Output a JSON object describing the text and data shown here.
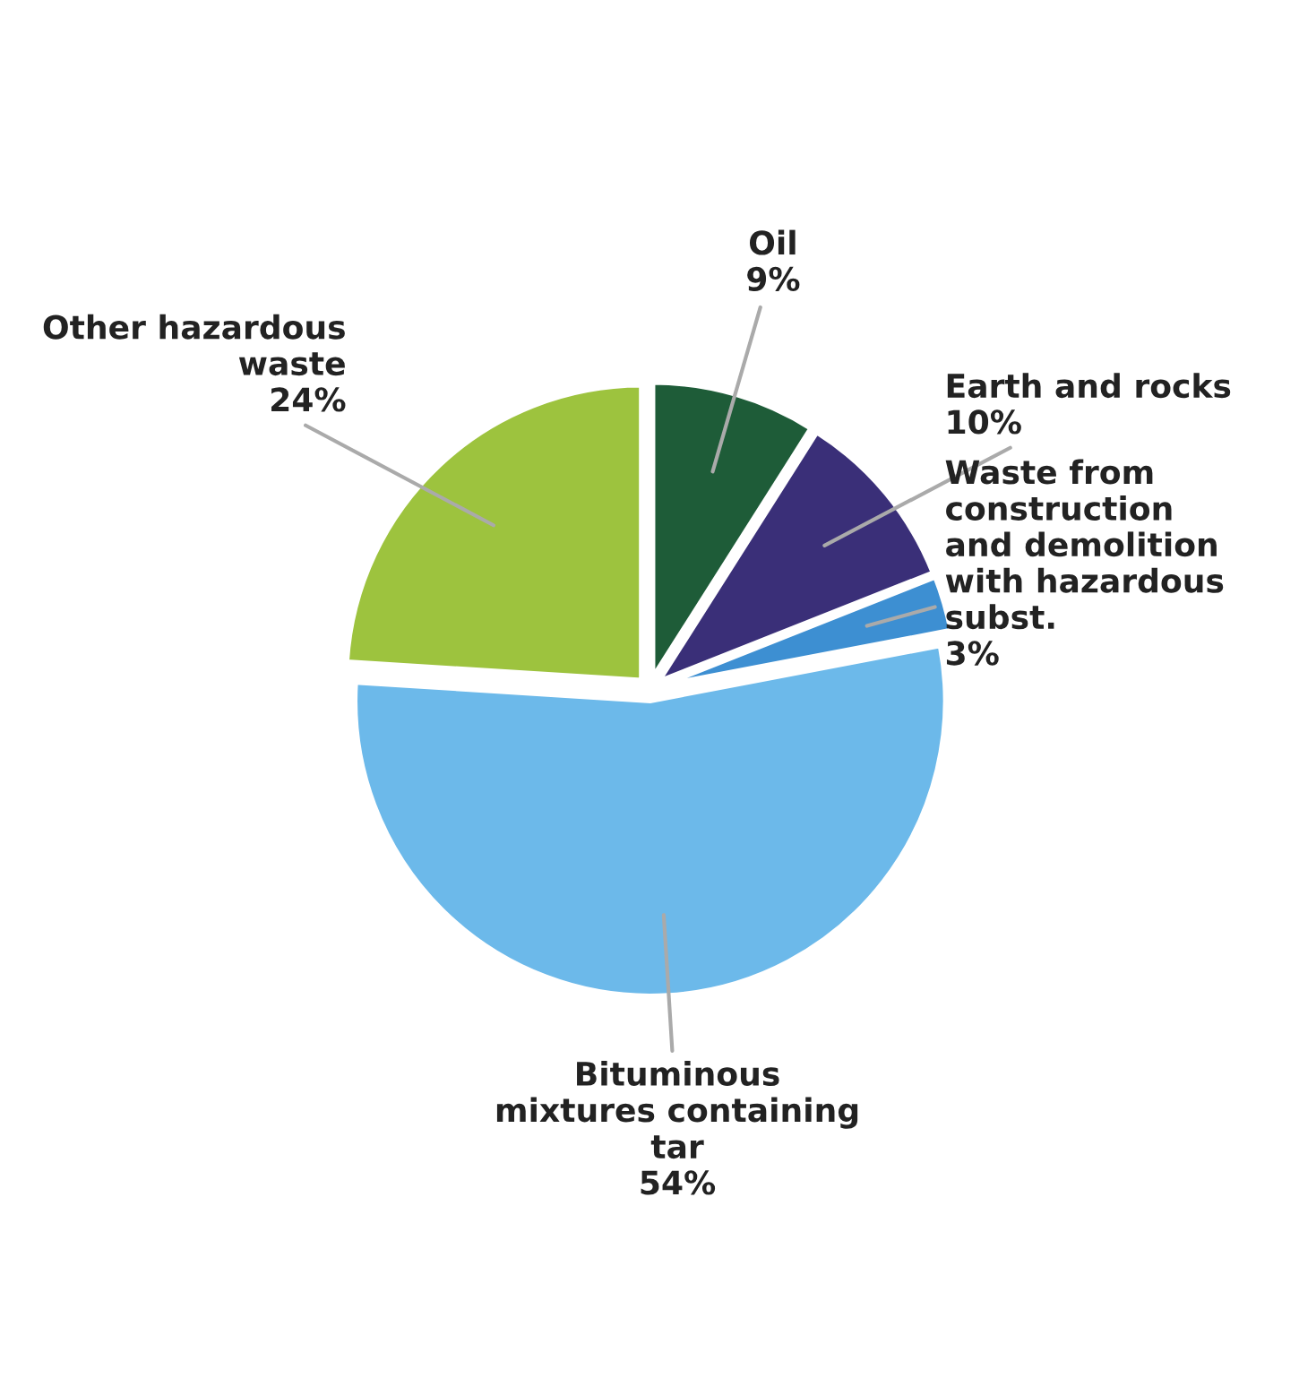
{
  "chart_data": {
    "type": "pie",
    "categories": [
      "Oil",
      "Earth and rocks",
      "Waste from\nconstruction\nand demolition\nwith hazardous\nsubst.",
      "Bituminous\nmixtures containing\ntar",
      "Other hazardous\nwaste"
    ],
    "values": [
      9,
      10,
      3,
      54,
      24
    ],
    "value_labels": [
      "9%",
      "10%",
      "3%",
      "54%",
      "24%"
    ],
    "colors": [
      "#1e5c38",
      "#3a2f78",
      "#3d8fd2",
      "#6cb9ea",
      "#9dc33e"
    ]
  }
}
